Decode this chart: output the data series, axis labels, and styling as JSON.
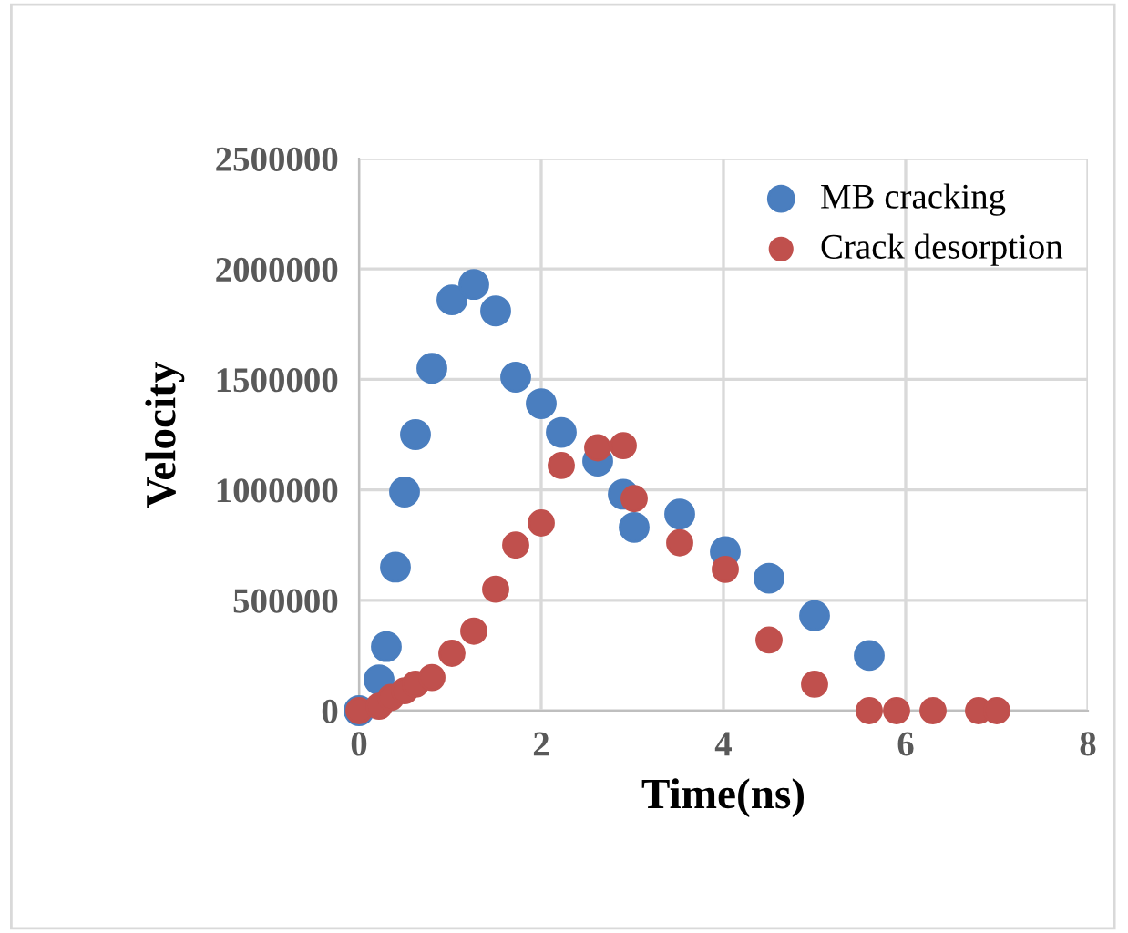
{
  "chart_data": {
    "type": "scatter",
    "xlabel": "Time(ns)",
    "ylabel": "Velocity",
    "xlim": [
      0,
      8
    ],
    "xticks": [
      0,
      2,
      4,
      6,
      8
    ],
    "ylim": [
      0,
      2500000
    ],
    "yticks": [
      0,
      500000,
      1000000,
      1500000,
      2000000,
      2500000
    ],
    "grid": true,
    "legend": "top right",
    "marker": "circle",
    "series": [
      {
        "name": "MB cracking",
        "color": "#4a7ebf",
        "x": [
          0,
          0.22,
          0.3,
          0.4,
          0.5,
          0.62,
          0.8,
          1.02,
          1.26,
          1.5,
          1.72,
          2.0,
          2.22,
          2.62,
          2.9,
          3.02,
          3.52,
          4.02,
          4.5,
          5.0,
          5.6
        ],
        "values": [
          0,
          140000,
          290000,
          650000,
          990000,
          1250000,
          1550000,
          1860000,
          1930000,
          1810000,
          1510000,
          1390000,
          1260000,
          1130000,
          980000,
          830000,
          890000,
          720000,
          600000,
          430000,
          250000
        ]
      },
      {
        "name": "Crack desorption",
        "color": "#c0504d",
        "x": [
          0,
          0.22,
          0.35,
          0.5,
          0.62,
          0.8,
          1.02,
          1.26,
          1.5,
          1.72,
          2.0,
          2.22,
          2.62,
          2.9,
          3.02,
          3.52,
          4.02,
          4.5,
          5.0,
          5.6,
          5.9,
          6.3,
          6.8,
          7.0
        ],
        "values": [
          0,
          20000,
          60000,
          90000,
          120000,
          150000,
          260000,
          360000,
          550000,
          750000,
          850000,
          1110000,
          1190000,
          1200000,
          960000,
          760000,
          640000,
          320000,
          120000,
          0,
          0,
          0,
          0,
          0
        ]
      }
    ]
  }
}
